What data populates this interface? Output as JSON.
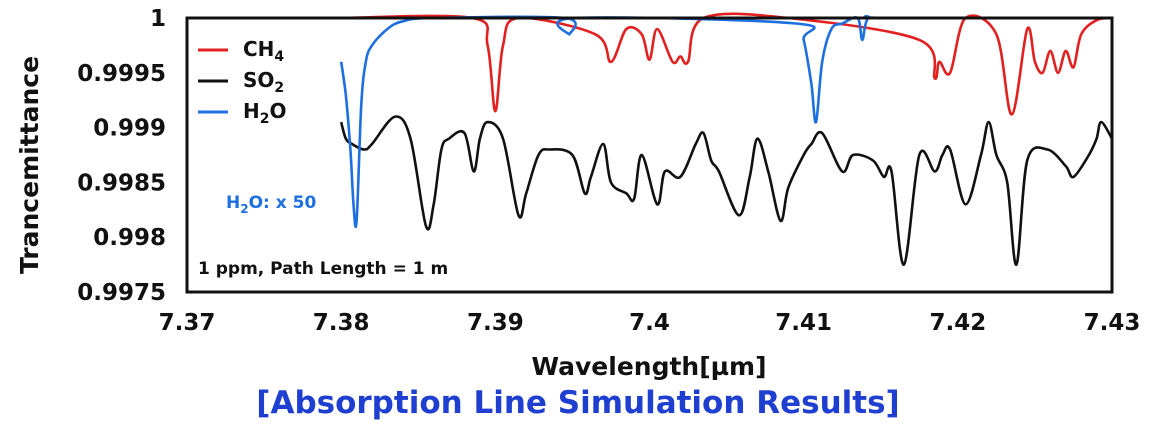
{
  "caption": "[Absorption Line Simulation Results]",
  "colors": {
    "CH4": "#e32020",
    "SO2": "#111111",
    "H2O": "#1e6fe0",
    "caption": "#1f3fd0"
  },
  "chart_data": {
    "type": "line",
    "xlabel": "Wavelength[µm]",
    "ylabel": "Trancemittance",
    "xlim": [
      7.37,
      7.43
    ],
    "ylim": [
      0.9975,
      1.0
    ],
    "x_ticks": [
      "7.37",
      "7.38",
      "7.39",
      "7.4",
      "7.41",
      "7.42",
      "7.43"
    ],
    "y_ticks": [
      "1",
      "0.9995",
      "0.999",
      "0.9985",
      "0.998",
      "0.9975"
    ],
    "grid": false,
    "legend_position": "top-left",
    "legend": [
      {
        "base": "CH",
        "sub": "4",
        "tail": ""
      },
      {
        "base": "SO",
        "sub": "2",
        "tail": ""
      },
      {
        "base": "H",
        "sub": "2",
        "tail": "O"
      }
    ],
    "annotations": {
      "h2o_scale": {
        "base": "H",
        "sub": "2",
        "tail": "O: x 50"
      },
      "conditions": "1 ppm, Path Length = 1 m"
    },
    "series": [
      {
        "name": "CH4",
        "color": "#e32020",
        "x": [
          7.38,
          7.3885,
          7.3895,
          7.39,
          7.3905,
          7.3915,
          7.3965,
          7.3975,
          7.3985,
          7.3995,
          7.4,
          7.4005,
          7.4015,
          7.402,
          7.4025,
          7.4035,
          7.409,
          7.4175,
          7.4185,
          7.4188,
          7.4195,
          7.4205,
          7.4225,
          7.4235,
          7.4245,
          7.425,
          7.4255,
          7.426,
          7.4265,
          7.427,
          7.4275,
          7.428,
          7.429,
          7.43
        ],
        "y": [
          1.0,
          1.0,
          0.99975,
          0.99915,
          0.99975,
          1.0,
          0.99985,
          0.9996,
          0.9999,
          0.99985,
          0.99962,
          0.9999,
          0.9996,
          0.99965,
          0.9996,
          1.0,
          1.0,
          0.9998,
          0.99945,
          0.9996,
          0.9995,
          1.0,
          0.99985,
          0.99912,
          0.9999,
          0.9996,
          0.9995,
          0.9997,
          0.9995,
          0.9997,
          0.99955,
          0.99985,
          0.99998,
          1.0
        ]
      },
      {
        "name": "SO2",
        "color": "#111111",
        "x": [
          7.38,
          7.3803,
          7.3807,
          7.3815,
          7.382,
          7.3835,
          7.3845,
          7.3855,
          7.386,
          7.3865,
          7.387,
          7.388,
          7.3886,
          7.389,
          7.3895,
          7.3905,
          7.3915,
          7.392,
          7.3928,
          7.3935,
          7.395,
          7.3958,
          7.3962,
          7.397,
          7.3975,
          7.3985,
          7.399,
          7.3995,
          7.4005,
          7.401,
          7.402,
          7.403,
          7.4035,
          7.404,
          7.4045,
          7.4058,
          7.4065,
          7.407,
          7.4077,
          7.4085,
          7.409,
          7.41,
          7.4105,
          7.4112,
          7.4125,
          7.4132,
          7.4145,
          7.4152,
          7.4157,
          7.4165,
          7.4175,
          7.4185,
          7.419,
          7.4195,
          7.4205,
          7.4215,
          7.422,
          7.4225,
          7.4232,
          7.4238,
          7.4245,
          7.4258,
          7.427,
          7.4275,
          7.4285,
          7.429,
          7.4293,
          7.43
        ],
        "y": [
          0.99905,
          0.9989,
          0.99885,
          0.9988,
          0.99885,
          0.9991,
          0.9989,
          0.9981,
          0.9983,
          0.9988,
          0.9989,
          0.99895,
          0.9986,
          0.9989,
          0.99905,
          0.9989,
          0.9982,
          0.9984,
          0.99875,
          0.9988,
          0.99875,
          0.9984,
          0.99855,
          0.99885,
          0.9985,
          0.9984,
          0.99835,
          0.99875,
          0.9983,
          0.9986,
          0.99855,
          0.99885,
          0.99895,
          0.9987,
          0.9986,
          0.9982,
          0.99855,
          0.9989,
          0.9986,
          0.99815,
          0.99845,
          0.99875,
          0.99885,
          0.99895,
          0.9986,
          0.99875,
          0.9987,
          0.99855,
          0.9986,
          0.99775,
          0.99875,
          0.9986,
          0.99875,
          0.9988,
          0.9983,
          0.99875,
          0.99905,
          0.99875,
          0.9985,
          0.99775,
          0.9987,
          0.9988,
          0.99865,
          0.99855,
          0.99875,
          0.9989,
          0.99905,
          0.9989
        ]
      },
      {
        "name": "H2O",
        "color": "#1e6fe0",
        "x": [
          7.38,
          7.3803,
          7.3806,
          7.3808,
          7.381,
          7.3813,
          7.3816,
          7.382,
          7.383,
          7.384,
          7.386,
          7.3945,
          7.3948,
          7.3952,
          7.4095,
          7.41,
          7.4105,
          7.4108,
          7.4112,
          7.4118,
          7.4125,
          7.4135,
          7.4138,
          7.4142,
          7.4155,
          7.43
        ],
        "y": [
          0.9996,
          0.9993,
          0.9988,
          0.9983,
          0.99815,
          0.9992,
          0.9996,
          0.99975,
          0.9999,
          0.99997,
          1.0,
          1.0,
          0.99985,
          1.0,
          0.99995,
          0.9998,
          0.9994,
          0.99905,
          0.9996,
          0.9999,
          0.99995,
          1.0,
          0.9998,
          1.0,
          1.0,
          1.0
        ]
      }
    ]
  }
}
